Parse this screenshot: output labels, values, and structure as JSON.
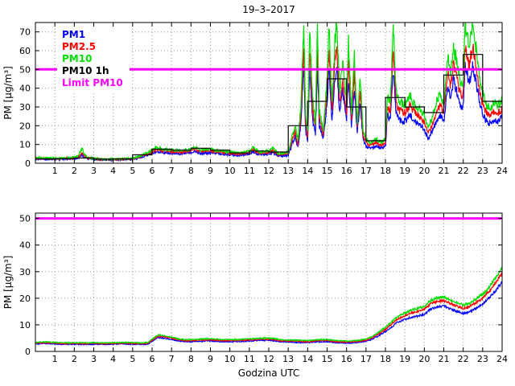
{
  "title": "19–3–2017",
  "colors": {
    "pm1": "#0000ff",
    "pm25": "#ff0000",
    "pm10": "#00dd00",
    "pm10_1h": "#000000",
    "limit": "#ff00ff",
    "grid": "#999999",
    "axis": "#000000",
    "background": "#ffffff"
  },
  "chart_data": [
    {
      "type": "line",
      "ylabel": "PM [μg/m³]",
      "xlabel": "",
      "xlim": [
        0,
        24
      ],
      "ylim": [
        0,
        75
      ],
      "xticks": [
        1,
        2,
        3,
        4,
        5,
        6,
        7,
        8,
        9,
        10,
        11,
        12,
        13,
        14,
        15,
        16,
        17,
        18,
        19,
        20,
        21,
        22,
        23,
        24
      ],
      "yticks": [
        0,
        10,
        20,
        30,
        40,
        50,
        60,
        70
      ],
      "grid": true,
      "noise": {
        "base": 0.35,
        "frac": 0.06
      },
      "legend": {
        "position": "top-left",
        "entries": [
          {
            "label": "PM1",
            "color": "#0000ff"
          },
          {
            "label": "PM2.5",
            "color": "#ff0000"
          },
          {
            "label": "PM10",
            "color": "#00dd00"
          },
          {
            "label": "PM10 1h",
            "color": "#000000"
          },
          {
            "label": "Limit PM10",
            "color": "#ff00ff"
          }
        ]
      },
      "limit": {
        "y": 50,
        "color": "#ff00ff",
        "label": "Limit PM10"
      },
      "hourly": {
        "name": "PM10 1h",
        "color": "#000000",
        "values": [
          2.3,
          2.4,
          2.8,
          2.2,
          2.3,
          4.5,
          7.5,
          7,
          8,
          7,
          5.5,
          6.5,
          6,
          20,
          33,
          45,
          30,
          12,
          35,
          30,
          27,
          47,
          58,
          33
        ]
      },
      "x": [
        0,
        0.5,
        1,
        1.5,
        2,
        2.2,
        2.4,
        2.5,
        2.7,
        3,
        3.5,
        4,
        4.5,
        5,
        5.3,
        5.6,
        6,
        6.2,
        6.5,
        7,
        7.5,
        8,
        8.2,
        8.5,
        9,
        9.5,
        10,
        10.5,
        11,
        11.2,
        11.5,
        12,
        12.2,
        12.5,
        13,
        13.2,
        13.35,
        13.5,
        13.65,
        13.8,
        13.9,
        14,
        14.1,
        14.25,
        14.4,
        14.5,
        14.6,
        14.8,
        15,
        15.1,
        15.25,
        15.4,
        15.5,
        15.65,
        15.8,
        16,
        16.1,
        16.25,
        16.4,
        16.55,
        16.7,
        16.85,
        17,
        17.25,
        17.5,
        17.75,
        18,
        18.1,
        18.25,
        18.4,
        18.55,
        18.7,
        19,
        19.25,
        19.5,
        19.75,
        20,
        20.2,
        20.4,
        20.6,
        20.8,
        21,
        21.2,
        21.35,
        21.5,
        21.7,
        21.85,
        22,
        22.1,
        22.3,
        22.5,
        22.7,
        22.85,
        23,
        23.2,
        23.4,
        23.6,
        23.8,
        24
      ],
      "series": [
        {
          "name": "PM1",
          "color": "#0000ff",
          "y": [
            2.4,
            2.2,
            2.1,
            2.2,
            2.5,
            2.9,
            4.2,
            3.2,
            2.4,
            2.1,
            1.8,
            1.8,
            2,
            2.1,
            2.7,
            3.7,
            5.2,
            6.3,
            5.7,
            5.3,
            5,
            5.6,
            6.4,
            5.3,
            5.6,
            5,
            4.5,
            4.2,
            4.9,
            6.2,
            4.5,
            4.9,
            5.9,
            3.8,
            4.4,
            10,
            14,
            8.5,
            21,
            52,
            17,
            12,
            52,
            24,
            16,
            52,
            20,
            13,
            32,
            52,
            22,
            45,
            52,
            27,
            39,
            23,
            45,
            20,
            40,
            16,
            33,
            13,
            9,
            8,
            9,
            8,
            9,
            26,
            23,
            50,
            27,
            23,
            22,
            26,
            22,
            21,
            18,
            13,
            17,
            22,
            26,
            22,
            41,
            34,
            44,
            37,
            31,
            30,
            52,
            43,
            52,
            41,
            32,
            26,
            22,
            21,
            23,
            22,
            25
          ]
        },
        {
          "name": "PM2.5",
          "color": "#ff0000",
          "y": [
            2.7,
            2.5,
            2.4,
            2.5,
            2.9,
            3.4,
            5.5,
            4,
            2.8,
            2.4,
            2,
            2,
            2.2,
            2.4,
            3.1,
            4.4,
            6.2,
            7.5,
            6.8,
            6.3,
            5.9,
            6.7,
            7.6,
            6.3,
            6.7,
            5.9,
            5.4,
            5,
            5.8,
            7.4,
            5.4,
            5.8,
            7,
            4.5,
            5.3,
            12,
            17,
            10,
            25,
            62,
            21,
            14,
            62,
            29,
            19,
            62,
            24,
            15,
            38,
            62,
            27,
            54,
            62,
            32,
            46,
            27,
            54,
            24,
            48,
            19,
            40,
            15,
            11,
            9.5,
            11,
            9.5,
            11,
            31,
            27,
            60,
            32,
            28,
            27,
            31,
            27,
            25,
            22,
            16,
            20,
            27,
            31,
            27,
            49,
            41,
            53,
            44,
            37,
            36,
            63,
            52,
            63,
            49,
            38,
            31,
            27,
            25,
            28,
            27,
            29
          ]
        },
        {
          "name": "PM10",
          "color": "#00dd00",
          "y": [
            3,
            2.8,
            2.6,
            2.7,
            3.2,
            4,
            8,
            5,
            3,
            2.6,
            2.2,
            2.2,
            2.4,
            2.6,
            3.5,
            5,
            7,
            8.5,
            7.5,
            7,
            6.5,
            7.5,
            8.5,
            7,
            7.5,
            6.5,
            6,
            5.5,
            6.5,
            8.5,
            6,
            6.5,
            8,
            5,
            6,
            14,
            20,
            12,
            30,
            74,
            25,
            16,
            74,
            35,
            22,
            74,
            28,
            18,
            45,
            74,
            32,
            65,
            74,
            38,
            55,
            32,
            65,
            28,
            58,
            22,
            48,
            18,
            13,
            11,
            13,
            11,
            13,
            36,
            32,
            74,
            38,
            33,
            31,
            36,
            31,
            29,
            26,
            19,
            24,
            32,
            37,
            32,
            58,
            48,
            62,
            52,
            44,
            42,
            74,
            62,
            74,
            58,
            45,
            37,
            31,
            29,
            33,
            31,
            34
          ]
        }
      ]
    },
    {
      "type": "line",
      "ylabel": "PM [μg/m³]",
      "xlabel": "Godzina UTC",
      "xlim": [
        0,
        24
      ],
      "ylim": [
        0,
        52
      ],
      "xticks": [
        1,
        2,
        3,
        4,
        5,
        6,
        7,
        8,
        9,
        10,
        11,
        12,
        13,
        14,
        15,
        16,
        17,
        18,
        19,
        20,
        21,
        22,
        23,
        24
      ],
      "yticks": [
        0,
        10,
        20,
        30,
        40,
        50
      ],
      "grid": true,
      "noise": {
        "base": 0.12,
        "frac": 0.02
      },
      "limit": {
        "y": 50,
        "color": "#ff00ff",
        "label": "Limit PM10"
      },
      "x": [
        0,
        0.5,
        1,
        1.5,
        2,
        2.5,
        3,
        3.5,
        4,
        4.5,
        5,
        5.5,
        5.8,
        6,
        6.3,
        6.6,
        7,
        7.3,
        7.6,
        8,
        8.5,
        9,
        9.5,
        10,
        10.5,
        11,
        11.5,
        12,
        12.3,
        12.6,
        13,
        13.5,
        14,
        14.5,
        15,
        15.3,
        15.6,
        16,
        16.5,
        17,
        17.3,
        17.6,
        18,
        18.3,
        18.6,
        19,
        19.3,
        19.6,
        20,
        20.3,
        20.6,
        21,
        21.3,
        21.6,
        22,
        22.3,
        22.6,
        23,
        23.3,
        23.6,
        24
      ],
      "series": [
        {
          "name": "PM1",
          "color": "#0000ff",
          "y": [
            2.8,
            3,
            2.8,
            2.6,
            2.7,
            2.6,
            2.7,
            2.6,
            2.7,
            2.8,
            2.7,
            2.6,
            2.8,
            3.8,
            5.2,
            5,
            4.5,
            4,
            3.7,
            3.6,
            3.8,
            4,
            3.7,
            3.6,
            3.7,
            3.9,
            4.1,
            4.2,
            4,
            3.6,
            3.5,
            3.4,
            3.3,
            3.6,
            3.7,
            3.4,
            3.2,
            3.1,
            3.3,
            3.8,
            4.5,
            5.7,
            7.4,
            9.1,
            10.8,
            12,
            12.8,
            13.2,
            14,
            15.7,
            16.6,
            17,
            16.1,
            15.2,
            14.3,
            14.8,
            16,
            17.7,
            19.8,
            22.3,
            26
          ]
        },
        {
          "name": "PM2.5",
          "color": "#ff0000",
          "y": [
            3.1,
            3.3,
            3.1,
            2.9,
            3,
            2.9,
            3,
            2.9,
            3,
            3.1,
            3,
            2.9,
            3.1,
            4.2,
            5.7,
            5.5,
            5,
            4.4,
            4.1,
            4,
            4.2,
            4.4,
            4.1,
            4,
            4.1,
            4.3,
            4.5,
            4.6,
            4.4,
            4,
            3.9,
            3.8,
            3.7,
            4,
            4.1,
            3.8,
            3.6,
            3.5,
            3.7,
            4.2,
            5,
            6.4,
            8.3,
            10.2,
            12.1,
            13.5,
            14.4,
            14.9,
            15.8,
            17.7,
            18.7,
            19.2,
            18.2,
            17.2,
            16.2,
            16.7,
            18.1,
            20,
            22.4,
            25.2,
            29.5
          ]
        },
        {
          "name": "PM10",
          "color": "#00dd00",
          "y": [
            3.4,
            3.6,
            3.4,
            3.2,
            3.3,
            3.2,
            3.3,
            3.2,
            3.3,
            3.4,
            3.3,
            3.2,
            3.4,
            4.6,
            6.2,
            6,
            5.4,
            4.8,
            4.5,
            4.4,
            4.6,
            4.8,
            4.5,
            4.4,
            4.5,
            4.7,
            4.9,
            5,
            4.8,
            4.4,
            4.3,
            4.2,
            4.1,
            4.4,
            4.5,
            4.2,
            4,
            3.9,
            4.1,
            4.6,
            5.5,
            7,
            9,
            11,
            13,
            14.5,
            15.5,
            16,
            17,
            19,
            20,
            20.5,
            19.5,
            18.5,
            17.5,
            18,
            19.5,
            21.5,
            24,
            27,
            31.5
          ]
        }
      ]
    }
  ]
}
